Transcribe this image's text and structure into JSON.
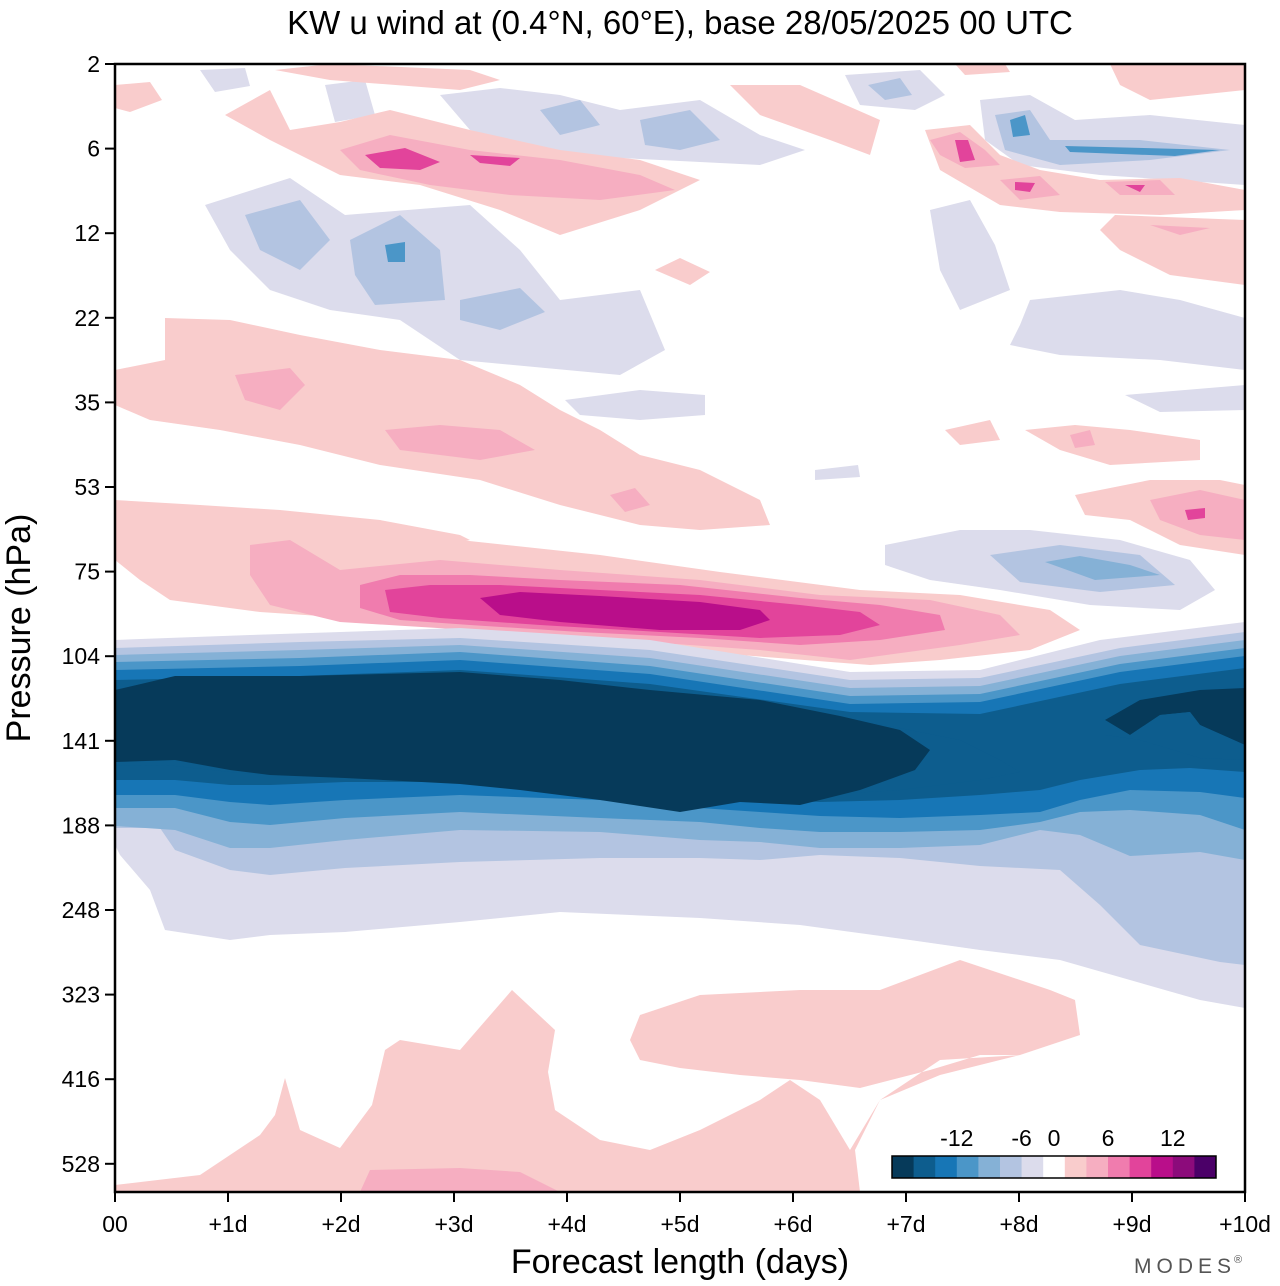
{
  "chart_data": {
    "type": "heatmap",
    "subtype": "filled-contour time-pressure section",
    "title": "KW u wind at (0.4°N, 60°E),  base 28/05/2025  00 UTC",
    "xlabel": "Forecast length (days)",
    "ylabel": "Pressure (hPa)",
    "x_ticks": [
      "00",
      "+1d",
      "+2d",
      "+3d",
      "+4d",
      "+5d",
      "+6d",
      "+7d",
      "+8d",
      "+9d",
      "+10d"
    ],
    "x_range_days": [
      0,
      10
    ],
    "y_ticks": [
      "2",
      "6",
      "12",
      "22",
      "35",
      "53",
      "75",
      "104",
      "141",
      "188",
      "248",
      "323",
      "416",
      "528"
    ],
    "y_axis_direction": "pressure decreasing upward",
    "colorbar": {
      "tick_labels": [
        "-12",
        "-6",
        "0",
        "6",
        "12"
      ],
      "levels": [
        -16,
        -14,
        -12,
        -10,
        -8,
        -6,
        -4,
        -2,
        2,
        4,
        6,
        8,
        10,
        12,
        14,
        16
      ],
      "colors": [
        "#063a5a",
        "#0d5d8e",
        "#1776b6",
        "#4b96c8",
        "#85b1d6",
        "#b3c4e1",
        "#dcdcec",
        "#ffffff",
        "#f9cccc",
        "#f6aec1",
        "#f07cae",
        "#e2449b",
        "#b90e8a",
        "#8c0b7b",
        "#4b0068"
      ],
      "position": "bottom-right inside plot"
    },
    "features": [
      {
        "label": "easterly core (u < -16 m/s)",
        "x_days": [
          0,
          7.2
        ],
        "pressure_hPa": [
          95,
          160
        ]
      },
      {
        "label": "easterly core re-forming",
        "x_days": [
          8.7,
          10
        ],
        "pressure_hPa": [
          100,
          145
        ]
      },
      {
        "label": "westerly maximum (u > 12 m/s)",
        "x_days": [
          3.4,
          5.6
        ],
        "pressure_hPa": [
          82,
          92
        ]
      },
      {
        "label": "weak westerly band",
        "x_days": [
          0,
          10
        ],
        "pressure_hPa": [
          25,
          60
        ]
      },
      {
        "label": "weak easterly band",
        "x_days": [
          0,
          10
        ],
        "pressure_hPa": [
          170,
          300
        ]
      },
      {
        "label": "weak westerlies",
        "x_days": [
          2,
          8
        ],
        "pressure_hPa": [
          330,
          560
        ]
      }
    ]
  },
  "branding": {
    "mark": "MODES",
    "symbol": "®"
  },
  "colors": {
    "frame": "#000000",
    "background": "#ffffff"
  }
}
